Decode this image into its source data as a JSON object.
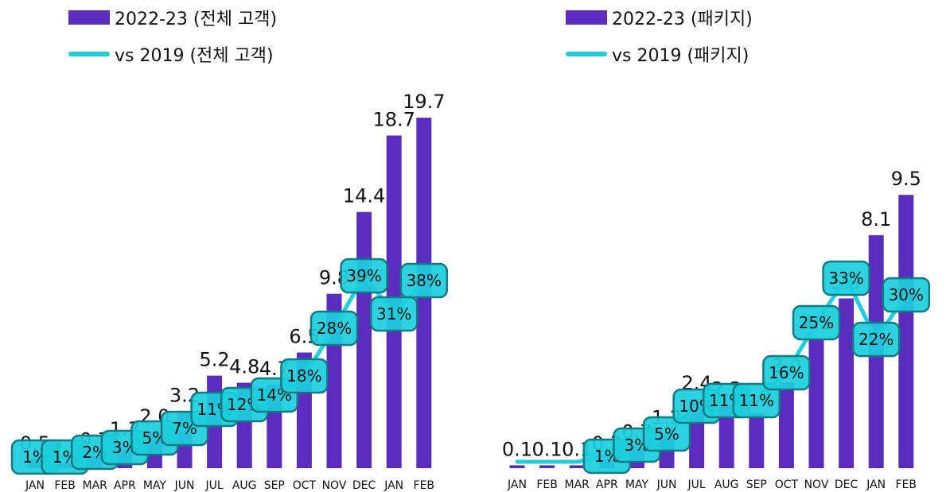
{
  "colors": {
    "bar": "#5b2dbe",
    "line": "#1ccfdd",
    "badge_fill": "#1ccfdd",
    "badge_stroke": "#127a80"
  },
  "chart_data": [
    {
      "type": "bar",
      "legend": {
        "bar_label": "2022-23 (전체 고객)",
        "line_label": "vs 2019 (전체 고객)"
      },
      "categories": [
        "JAN",
        "FEB",
        "MAR",
        "APR",
        "MAY",
        "JUN",
        "JUL",
        "AUG",
        "SEP",
        "OCT",
        "NOV",
        "DEC",
        "JAN",
        "FEB"
      ],
      "series": [
        {
          "name": "2022-23 (전체 고객)",
          "type": "bar",
          "values": [
            0.5,
            0.3,
            0.7,
            1.3,
            2.0,
            3.2,
            5.2,
            4.8,
            4.7,
            6.5,
            9.8,
            14.4,
            18.7,
            19.7
          ],
          "value_labels": [
            "0.5",
            "0.3",
            "0.7",
            "1.3",
            "2.0",
            "3.2",
            "5.2",
            "4.8",
            "4.7",
            "6.5",
            "9.8",
            "14.4",
            "18.7",
            "19.7"
          ]
        },
        {
          "name": "vs 2019 (전체 고객)",
          "type": "line",
          "values": [
            1,
            1,
            2,
            3,
            5,
            7,
            11,
            12,
            14,
            18,
            28,
            39,
            31,
            38
          ],
          "value_labels": [
            "1%",
            "1%",
            "2%",
            "3%",
            "5%",
            "7%",
            "11%",
            "12%",
            "14%",
            "18%",
            "28%",
            "39%",
            "31%",
            "38%"
          ]
        }
      ],
      "ylim": [
        0,
        21
      ]
    },
    {
      "type": "bar",
      "legend": {
        "bar_label": "2022-23 (패키지)",
        "line_label": "vs 2019 (패키지)"
      },
      "categories": [
        "JAN",
        "FEB",
        "MAR",
        "APR",
        "MAY",
        "JUN",
        "JUL",
        "AUG",
        "SEP",
        "OCT",
        "NOV",
        "DEC",
        "JAN",
        "FEB"
      ],
      "series": [
        {
          "name": "2022-23 (패키지)",
          "type": "bar",
          "values": [
            0.1,
            0.1,
            0.1,
            0.3,
            0.7,
            1.2,
            2.4,
            2.2,
            1.9,
            3.0,
            4.5,
            5.9,
            8.1,
            9.5
          ],
          "value_labels": [
            "0.1",
            "0.1",
            "0.1",
            "0.3",
            "0.7",
            "1.2",
            "2.4",
            "2.2",
            "1.9",
            "3.0",
            "4.5",
            "5.9",
            "8.1",
            "9.5"
          ]
        },
        {
          "name": "vs 2019 (패키지)",
          "type": "line",
          "values": [
            0,
            0,
            0,
            1,
            3,
            5,
            10,
            11,
            11,
            16,
            25,
            33,
            22,
            30
          ],
          "value_labels": [
            "",
            "",
            "",
            "1%",
            "3%",
            "5%",
            "10%",
            "11%",
            "11%",
            "16%",
            "25%",
            "33%",
            "22%",
            "30%"
          ]
        }
      ],
      "ylim": [
        0,
        10.5
      ]
    }
  ]
}
